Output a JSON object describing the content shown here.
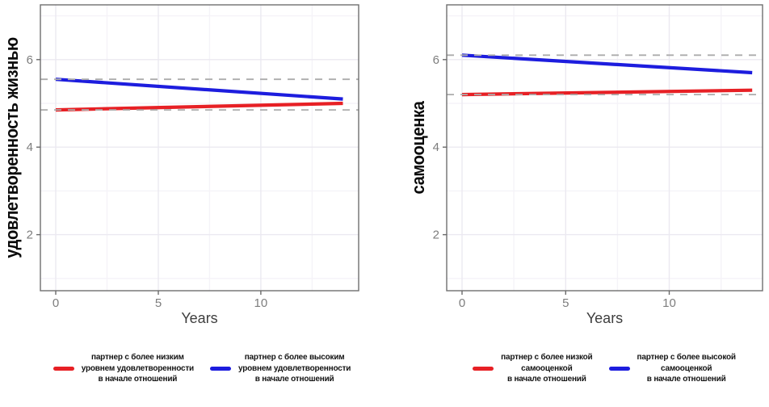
{
  "page": {
    "background": "#ffffff"
  },
  "colors": {
    "red_series": "#E72025",
    "blue_series": "#1D1DDE",
    "reference_dash": "#ACACAC",
    "panel_border": "#6F6F6F",
    "grid_major": "#EBE9F1",
    "grid_minor": "#F5F3F8",
    "tick_mark": "#6A6A6A",
    "tick_label": "#7D7D7D",
    "axis_title": "#3E3E3E"
  },
  "chart_data": [
    {
      "type": "line",
      "y_title": "удовлетворенность жизнью",
      "x_title": "Years",
      "x_ticks": [
        0,
        5,
        10
      ],
      "y_ticks": [
        2,
        4,
        6
      ],
      "x_minor_ticks": [
        2.5,
        7.5,
        12.5
      ],
      "y_minor_ticks": [
        1,
        3,
        5,
        7
      ],
      "xlim": [
        -0.75,
        14.77
      ],
      "ylim": [
        0.72,
        7.25
      ],
      "grid": "on",
      "legend_position": "bottom",
      "series": [
        {
          "name": "партнер с более низким уровнем удовлетворенности в начале отношений",
          "color": "#E72025",
          "x": [
            0,
            14
          ],
          "y": [
            4.85,
            5.0
          ]
        },
        {
          "name": "партнер с более высоким уровнем удовлетворенности в начале отношений",
          "color": "#1D1DDE",
          "x": [
            0,
            14
          ],
          "y": [
            5.55,
            5.1
          ]
        }
      ],
      "reference_lines": [
        {
          "y": 5.55,
          "style": "dashed",
          "color": "#ACACAC"
        },
        {
          "y": 4.85,
          "style": "dashed",
          "color": "#ACACAC"
        }
      ],
      "legend": [
        {
          "color": "#E72025",
          "lines": [
            "партнер с более низким",
            "уровнем удовлетворенности",
            "в начале отношений"
          ]
        },
        {
          "color": "#1D1DDE",
          "lines": [
            "партнер с более высоким",
            "уровнем удовлетворенности",
            "в начале отношений"
          ]
        }
      ]
    },
    {
      "type": "line",
      "y_title": "самооценка",
      "x_title": "Years",
      "x_ticks": [
        0,
        5,
        10
      ],
      "y_ticks": [
        2,
        4,
        6
      ],
      "x_minor_ticks": [
        2.5,
        7.5,
        12.5
      ],
      "y_minor_ticks": [
        1,
        3,
        5,
        7
      ],
      "xlim": [
        -0.74,
        14.5
      ],
      "ylim": [
        0.72,
        7.25
      ],
      "grid": "on",
      "legend_position": "bottom",
      "series": [
        {
          "name": "партнер с более низкой самооценкой в начале отношений",
          "color": "#E72025",
          "x": [
            0,
            14
          ],
          "y": [
            5.2,
            5.3
          ]
        },
        {
          "name": "партнер с более высокой самооценкой в начале отношений",
          "color": "#1D1DDE",
          "x": [
            0,
            14
          ],
          "y": [
            6.1,
            5.7
          ]
        }
      ],
      "reference_lines": [
        {
          "y": 6.1,
          "style": "dashed",
          "color": "#ACACAC"
        },
        {
          "y": 5.2,
          "style": "dashed",
          "color": "#ACACAC"
        }
      ],
      "legend": [
        {
          "color": "#E72025",
          "lines": [
            "партнер с более низкой",
            "самооценкой",
            "в начале отношений"
          ]
        },
        {
          "color": "#1D1DDE",
          "lines": [
            "партнер с более высокой",
            "самооценкой",
            "в начале отношений"
          ]
        }
      ]
    }
  ]
}
